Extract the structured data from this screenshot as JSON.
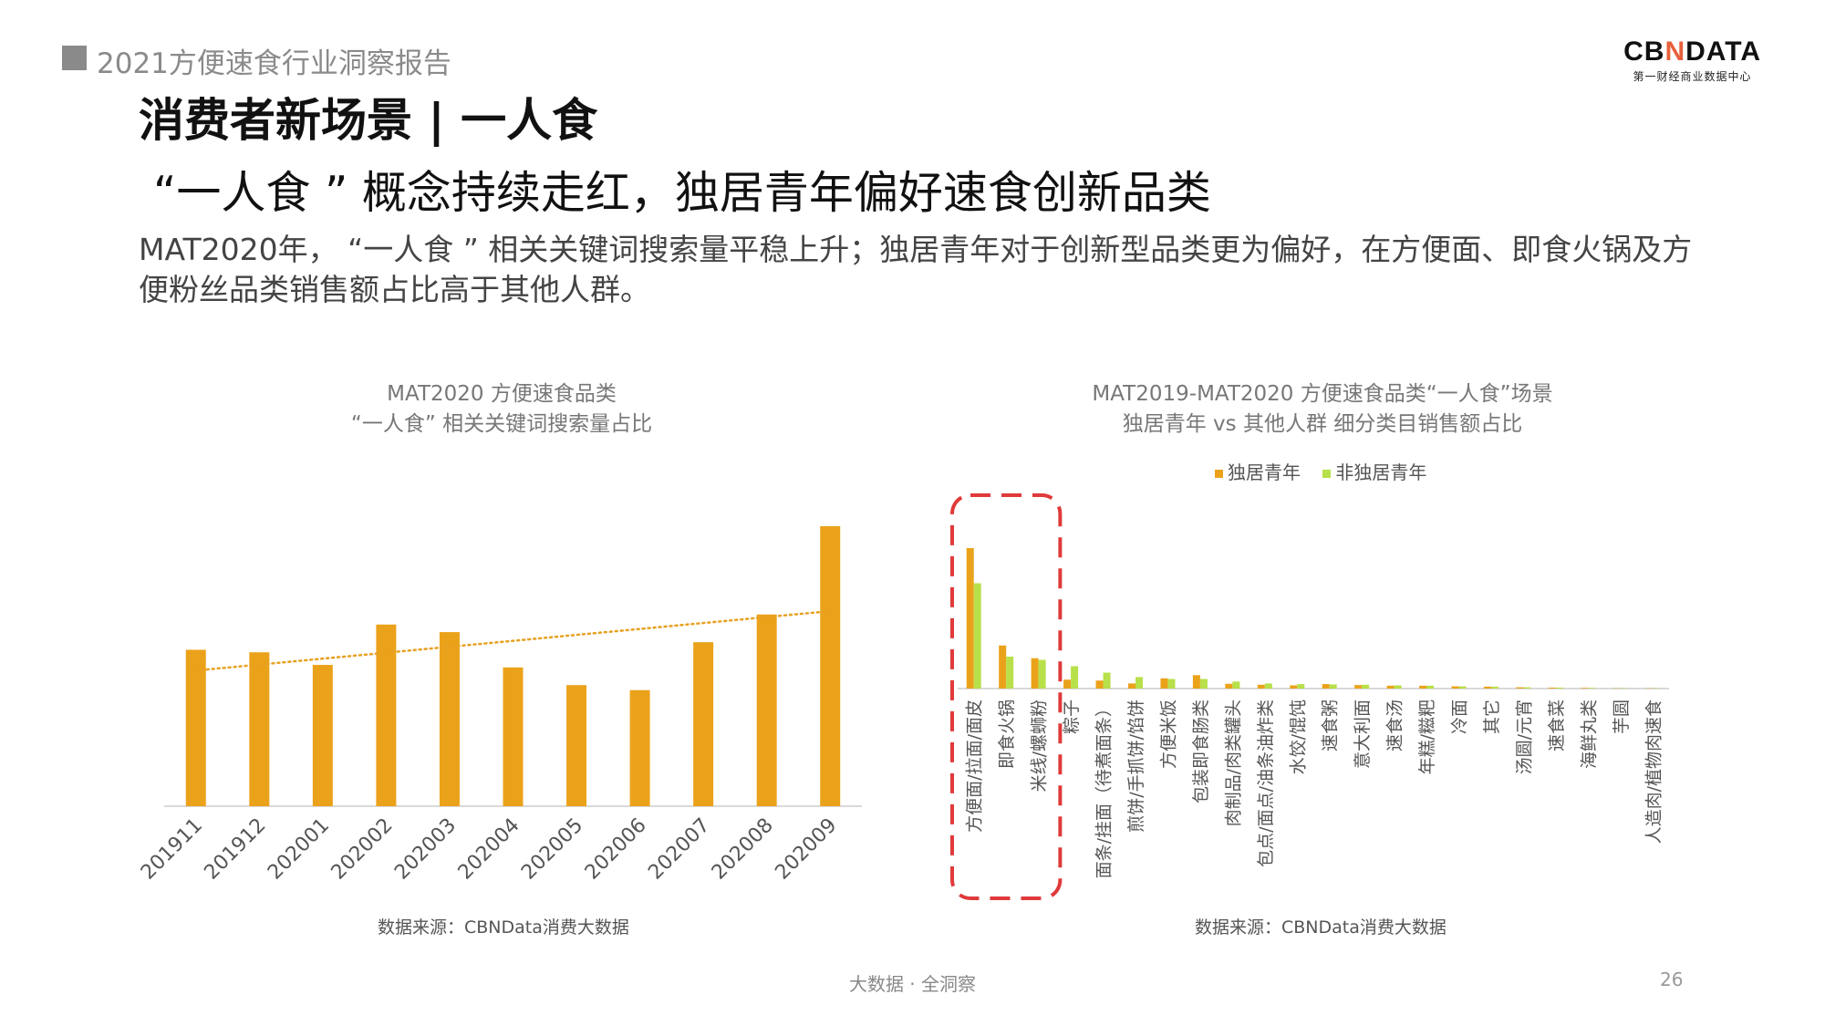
{
  "header": {
    "report_title": "2021方便速食行业洞察报告",
    "logo_text_1": "CB",
    "logo_text_n": "N",
    "logo_text_2": "DATA",
    "logo_sub": "第一财经商业数据中心"
  },
  "slide": {
    "section_title": "消费者新场景 | 一人食",
    "headline": "“一人食 ” 概念持续走红，独居青年偏好速食创新品类",
    "body": "MAT2020年，  “一人食 ” 相关关键词搜索量平稳上升；独居青年对于创新型品类更为偏好，在方便面、即食火锅及方便粉丝品类销售额占比高于其他人群。"
  },
  "left_chart": {
    "title_line1": "MAT2020 方便速食品类",
    "title_line2": "“一人食” 相关关键词搜索量占比",
    "source": "数据来源：CBNData消费大数据"
  },
  "right_chart": {
    "title_line1": "MAT2019-MAT2020 方便速食品类“一人食”场景",
    "title_line2": "独居青年 vs 其他人群 细分类目销售额占比",
    "source": "数据来源：CBNData消费大数据"
  },
  "footer": {
    "center": "大数据 · 全洞察",
    "page": "26"
  },
  "colors": {
    "orange": "#EBA21B",
    "green": "#B8E04A",
    "trend": "#E8A020",
    "highlight_box": "#E03A3A",
    "axis": "#D9D9D9"
  },
  "chart_data": [
    {
      "type": "bar",
      "categories": [
        "201911",
        "201912",
        "202001",
        "202002",
        "202003",
        "202004",
        "202005",
        "202006",
        "202007",
        "202008",
        "202009"
      ],
      "values": [
        6.2,
        6.1,
        5.6,
        7.2,
        6.9,
        5.5,
        4.8,
        4.6,
        6.5,
        7.6,
        11.1
      ],
      "trendline": "linear",
      "ylim": [
        0,
        12
      ],
      "grid": false,
      "legend": false
    },
    {
      "type": "bar",
      "categories": [
        "方便面/拉面/面皮",
        "即食火锅",
        "米线/螺蛳粉",
        "粽子",
        "面条/挂面（待煮面条）",
        "煎饼/手抓饼/馅饼",
        "方便米饭",
        "包装即食肠类",
        "肉制品/肉类罐头",
        "包点/面点/油条油炸类",
        "水饺/馄饨",
        "速食粥",
        "意大利面",
        "速食汤",
        "年糕/糍粑",
        "冷面",
        "其它",
        "汤圆/元宵",
        "速食菜",
        "海鲜丸类",
        "芋圆",
        "人造肉/植物肉速食"
      ],
      "series": [
        {
          "name": "独居青年",
          "values": [
            44.0,
            13.5,
            9.5,
            2.8,
            2.5,
            1.6,
            3.2,
            4.2,
            1.5,
            1.2,
            1.0,
            1.4,
            1.1,
            0.9,
            0.9,
            0.7,
            0.6,
            0.4,
            0.3,
            0.2,
            0.1,
            0.1
          ]
        },
        {
          "name": "非独居青年",
          "values": [
            33.0,
            10.0,
            9.0,
            7.0,
            5.0,
            3.6,
            3.0,
            3.0,
            2.2,
            1.6,
            1.4,
            1.3,
            1.2,
            1.0,
            0.9,
            0.7,
            0.6,
            0.4,
            0.3,
            0.2,
            0.1,
            0.1
          ]
        }
      ],
      "highlighted_categories": [
        "方便面/拉面/面皮",
        "即食火锅",
        "米线/螺蛳粉"
      ],
      "legend": "top-center",
      "grid": false,
      "ylim": [
        0,
        50
      ]
    }
  ]
}
